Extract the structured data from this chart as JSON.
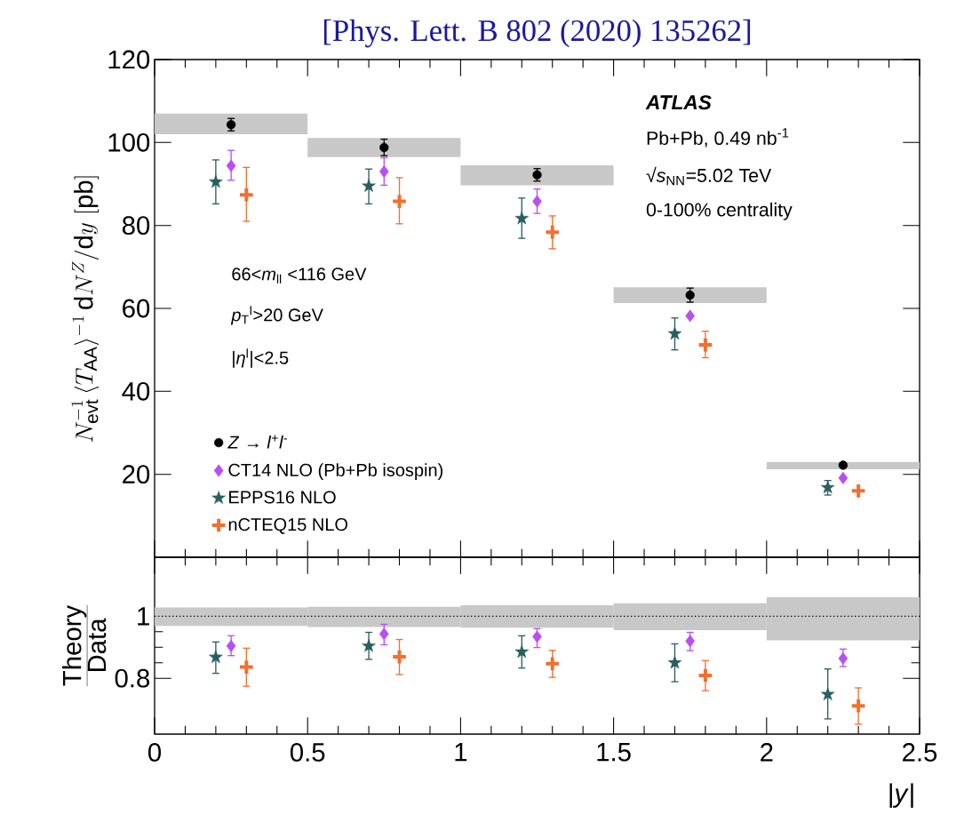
{
  "chart_data": [
    {
      "type": "scatter",
      "xlim": [
        0,
        2.5
      ],
      "xticks": [
        0,
        0.5,
        1,
        1.5,
        2,
        2.5
      ],
      "ylim": [
        0,
        120
      ],
      "yticks": [
        20,
        40,
        60,
        80,
        100,
        120
      ],
      "tick_labels": "y",
      "legend": "bottom left",
      "ylabel": "N_{\\mathrm{evt}}^{-1}\\,\\langle T_{\\mathrm{AA}}\\rangle^{-1}\\,\\mathrm{d}N^{Z}/\\mathrm{d}y~[\\mathrm{pb}]",
      "annotations": [
        "[Phys. Lett. B 802 (2020) 135262]",
        "ATLAS",
        "Pb+Pb, 0.49 nb$^{-1}$",
        "√*s*$_{NN}$=5.02 TeV",
        "0-100% centrality",
        "66<*m*$_{ll}$ <116 GeV",
        "*p*$_{T}$$^{l}$>20 GeV",
        "|*η*$^{l}$|<2.5"
      ],
      "series": [
        {
          "type": "bar",
          "color": "#c8c8c8",
          "x": [
            0.25,
            0.75,
            1.25,
            1.75,
            2.25
          ],
          "base": [
            102,
            96.5,
            89.7,
            61.3,
            21.2
          ],
          "values": [
            5,
            4.6,
            4.8,
            3.8,
            1.8
          ]
        },
        {
          "name": "*Z* → *l*$^{+}$*l*$^{-}$",
          "color": "#000000",
          "marker": "circle",
          "x": [
            0.25,
            0.75,
            1.25,
            1.75,
            2.25
          ],
          "values": [
            104.3,
            98.8,
            92.2,
            63.2,
            22.2
          ],
          "errors": [
            1.5,
            2,
            1.5,
            1.7,
            null
          ]
        },
        {
          "name": "CT14 NLO (Pb+Pb isospin)",
          "color": "#b94ff0",
          "marker": "diamond",
          "x": [
            0.25,
            0.75,
            1.25,
            1.75,
            2.25
          ],
          "values": [
            94.4,
            93.0,
            85.8,
            58.2,
            19.1
          ],
          "errors": [
            [
              90.9,
              98.1
            ],
            [
              89.7,
              96.3
            ],
            [
              82.9,
              88.8
            ],
            null,
            null
          ]
        },
        {
          "name": "EPPS16 NLO",
          "color": "#2a5f5f",
          "marker": "star",
          "x": [
            0.2,
            0.7,
            1.2,
            1.7,
            2.2
          ],
          "values": [
            90.5,
            89.5,
            81.7,
            53.9,
            16.8
          ],
          "errors": [
            [
              85.2,
              95.8
            ],
            [
              85.2,
              93.6
            ],
            [
              76.9,
              86.6
            ],
            [
              50.0,
              57.7
            ],
            [
              15.0,
              18.5
            ]
          ]
        },
        {
          "name": "nCTEQ15 NLO",
          "color": "#f07030",
          "marker": "cross",
          "x": [
            0.3,
            0.8,
            1.3,
            1.8,
            2.3
          ],
          "values": [
            87.4,
            85.8,
            78.4,
            51.2,
            16.0
          ],
          "errors": [
            [
              81.0,
              94.0
            ],
            [
              80.4,
              91.5
            ],
            [
              74.4,
              82.3
            ],
            [
              48.1,
              54.5
            ],
            null
          ]
        }
      ]
    },
    {
      "type": "scatter",
      "xlim": [
        0,
        2.5
      ],
      "xticks": [
        0,
        0.5,
        1,
        1.5,
        2,
        2.5
      ],
      "ylim": [
        0.62,
        1.19
      ],
      "yticks": [
        0.8,
        1
      ],
      "xlabel": "|*y*|",
      "ylabel": "\\frac{\\textsf{Theory}}{\\textsf{Data}}",
      "ref_lines": [
        {
          "axis": "y",
          "value": 1,
          "line_style": "dotted",
          "color": "#000000"
        }
      ],
      "series": [
        {
          "type": "bar",
          "color": "#c8c8c8",
          "x": [
            0.25,
            0.75,
            1.25,
            1.75,
            2.25
          ],
          "base": [
            0.969,
            0.965,
            0.963,
            0.955,
            0.922
          ],
          "values": [
            0.059,
            0.065,
            0.072,
            0.087,
            0.139
          ]
        },
        {
          "color": "#b94ff0",
          "marker": "diamond",
          "x": [
            0.25,
            0.75,
            1.25,
            1.75,
            2.25
          ],
          "values": [
            0.904,
            0.943,
            0.934,
            0.92,
            0.864
          ],
          "errors": [
            [
              0.873,
              0.937
            ],
            [
              0.908,
              0.974
            ],
            [
              0.899,
              0.96
            ],
            [
              0.889,
              0.948
            ],
            [
              0.838,
              0.894
            ]
          ]
        },
        {
          "color": "#2a5f5f",
          "marker": "star",
          "x": [
            0.2,
            0.7,
            1.2,
            1.7,
            2.2
          ],
          "values": [
            0.868,
            0.904,
            0.885,
            0.85,
            0.748
          ],
          "errors": [
            [
              0.816,
              0.917
            ],
            [
              0.861,
              0.948
            ],
            [
              0.833,
              0.937
            ],
            [
              0.789,
              0.911
            ],
            [
              0.669,
              0.83
            ]
          ]
        },
        {
          "color": "#f07030",
          "marker": "cross",
          "x": [
            0.3,
            0.8,
            1.3,
            1.8,
            2.3
          ],
          "values": [
            0.836,
            0.869,
            0.847,
            0.809,
            0.711
          ],
          "errors": [
            [
              0.774,
              0.897
            ],
            [
              0.812,
              0.925
            ],
            [
              0.803,
              0.89
            ],
            [
              0.76,
              0.857
            ],
            [
              0.652,
              0.769
            ]
          ]
        }
      ]
    }
  ]
}
